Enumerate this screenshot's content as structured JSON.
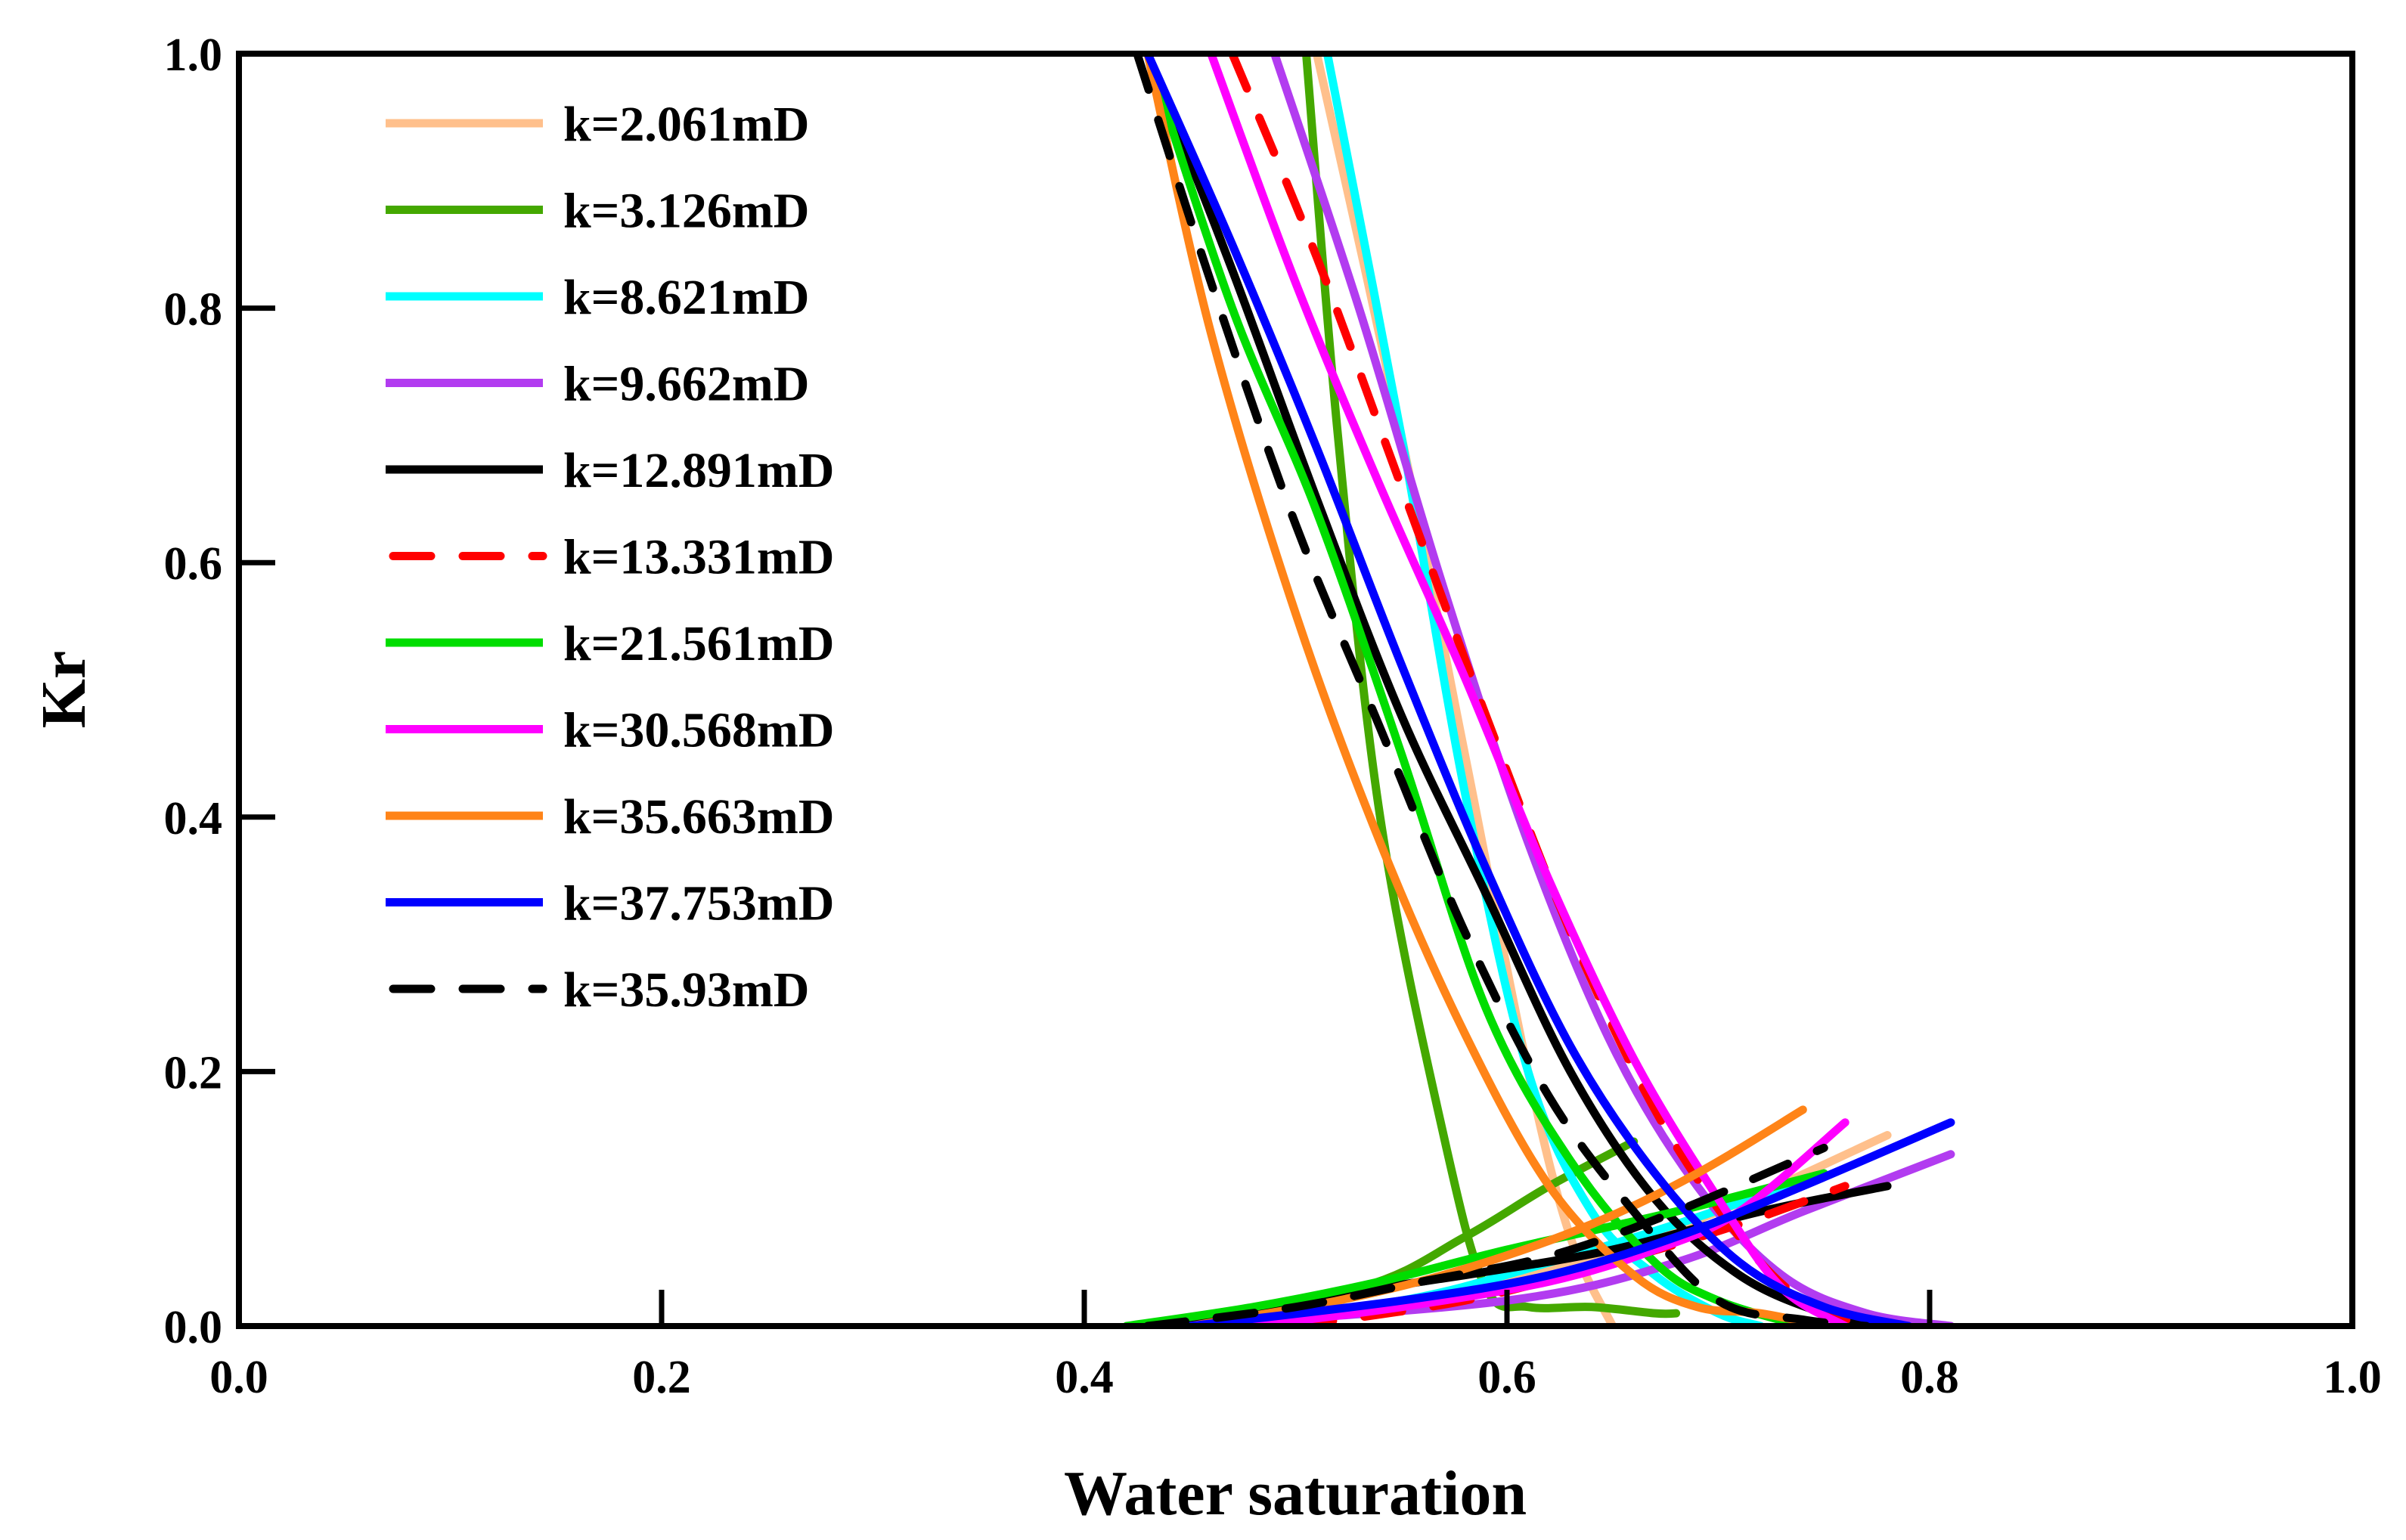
{
  "chart_data": {
    "type": "line",
    "title": "",
    "xlabel": "Water saturation",
    "ylabel": "Kr",
    "xlim": [
      0,
      1
    ],
    "ylim": [
      0,
      1
    ],
    "xticks": [
      "0.0",
      "0.2",
      "0.4",
      "0.6",
      "0.8",
      "1.0"
    ],
    "yticks": [
      "0.0",
      "0.2",
      "0.4",
      "0.6",
      "0.8",
      "1.0"
    ],
    "grid": false,
    "legend_position": "top-left",
    "series": [
      {
        "name": "k=2.061mD",
        "color": "#FFC08C",
        "dashed": false,
        "kro": [
          [
            0.51,
            1.0
          ],
          [
            0.55,
            0.7
          ],
          [
            0.58,
            0.45
          ],
          [
            0.61,
            0.2
          ],
          [
            0.63,
            0.07
          ],
          [
            0.65,
            0.0
          ]
        ],
        "krw": [
          [
            0.45,
            0.0
          ],
          [
            0.55,
            0.02
          ],
          [
            0.63,
            0.05
          ],
          [
            0.7,
            0.09
          ],
          [
            0.78,
            0.15
          ]
        ]
      },
      {
        "name": "k=3.126mD",
        "color": "#44A800",
        "dashed": false,
        "kro": [
          [
            0.505,
            1.0
          ],
          [
            0.52,
            0.7
          ],
          [
            0.54,
            0.4
          ],
          [
            0.57,
            0.15
          ],
          [
            0.59,
            0.03
          ],
          [
            0.61,
            0.015
          ],
          [
            0.64,
            0.015
          ],
          [
            0.67,
            0.01
          ],
          [
            0.68,
            0.01
          ]
        ],
        "krw": [
          [
            0.43,
            0.0
          ],
          [
            0.53,
            0.03
          ],
          [
            0.58,
            0.07
          ],
          [
            0.62,
            0.11
          ],
          [
            0.66,
            0.145
          ]
        ]
      },
      {
        "name": "k=8.621mD",
        "color": "#00FFFF",
        "dashed": false,
        "kro": [
          [
            0.515,
            1.0
          ],
          [
            0.55,
            0.7
          ],
          [
            0.58,
            0.42
          ],
          [
            0.61,
            0.2
          ],
          [
            0.64,
            0.09
          ],
          [
            0.67,
            0.04
          ],
          [
            0.7,
            0.01
          ],
          [
            0.72,
            0.0
          ]
        ],
        "krw": [
          [
            0.45,
            0.0
          ],
          [
            0.55,
            0.02
          ],
          [
            0.62,
            0.05
          ],
          [
            0.68,
            0.08
          ],
          [
            0.75,
            0.12
          ]
        ]
      },
      {
        "name": "k=9.662mD",
        "color": "#B23CF0",
        "dashed": false,
        "kro": [
          [
            0.49,
            1.0
          ],
          [
            0.53,
            0.8
          ],
          [
            0.57,
            0.58
          ],
          [
            0.61,
            0.38
          ],
          [
            0.65,
            0.22
          ],
          [
            0.69,
            0.11
          ],
          [
            0.73,
            0.04
          ],
          [
            0.77,
            0.01
          ],
          [
            0.81,
            0.0
          ]
        ],
        "krw": [
          [
            0.45,
            0.0
          ],
          [
            0.6,
            0.02
          ],
          [
            0.68,
            0.05
          ],
          [
            0.74,
            0.09
          ],
          [
            0.81,
            0.135
          ]
        ]
      },
      {
        "name": "k=12.891mD",
        "color": "#000000",
        "dashed": false,
        "kro": [
          [
            0.43,
            1.0
          ],
          [
            0.47,
            0.83
          ],
          [
            0.51,
            0.65
          ],
          [
            0.55,
            0.48
          ],
          [
            0.59,
            0.34
          ],
          [
            0.63,
            0.2
          ],
          [
            0.67,
            0.1
          ],
          [
            0.71,
            0.04
          ],
          [
            0.75,
            0.01
          ],
          [
            0.78,
            0.0
          ]
        ],
        "krw": [
          [
            0.43,
            0.0
          ],
          [
            0.5,
            0.02
          ],
          [
            0.58,
            0.04
          ],
          [
            0.65,
            0.06
          ],
          [
            0.72,
            0.09
          ],
          [
            0.78,
            0.11
          ]
        ]
      },
      {
        "name": "k=13.331mD",
        "color": "#FF0000",
        "dashed": true,
        "kro": [
          [
            0.47,
            1.0
          ],
          [
            0.51,
            0.84
          ],
          [
            0.55,
            0.66
          ],
          [
            0.59,
            0.48
          ],
          [
            0.63,
            0.31
          ],
          [
            0.67,
            0.17
          ],
          [
            0.71,
            0.07
          ],
          [
            0.74,
            0.02
          ],
          [
            0.77,
            0.0
          ]
        ],
        "krw": [
          [
            0.5,
            0.0
          ],
          [
            0.58,
            0.02
          ],
          [
            0.65,
            0.05
          ],
          [
            0.71,
            0.08
          ],
          [
            0.76,
            0.11
          ]
        ]
      },
      {
        "name": "k=21.561mD",
        "color": "#00DD00",
        "dashed": false,
        "kro": [
          [
            0.43,
            1.0
          ],
          [
            0.47,
            0.8
          ],
          [
            0.51,
            0.64
          ],
          [
            0.55,
            0.45
          ],
          [
            0.59,
            0.25
          ],
          [
            0.63,
            0.13
          ],
          [
            0.67,
            0.05
          ],
          [
            0.7,
            0.02
          ],
          [
            0.74,
            0.0
          ]
        ],
        "krw": [
          [
            0.42,
            0.0
          ],
          [
            0.48,
            0.015
          ],
          [
            0.54,
            0.035
          ],
          [
            0.6,
            0.06
          ],
          [
            0.68,
            0.09
          ],
          [
            0.75,
            0.12
          ]
        ]
      },
      {
        "name": "k=30.568mD",
        "color": "#FF00FF",
        "dashed": false,
        "kro": [
          [
            0.46,
            1.0
          ],
          [
            0.5,
            0.82
          ],
          [
            0.54,
            0.66
          ],
          [
            0.58,
            0.51
          ],
          [
            0.62,
            0.35
          ],
          [
            0.66,
            0.21
          ],
          [
            0.7,
            0.1
          ],
          [
            0.73,
            0.03
          ],
          [
            0.76,
            0.0
          ]
        ],
        "krw": [
          [
            0.48,
            0.0
          ],
          [
            0.55,
            0.015
          ],
          [
            0.62,
            0.035
          ],
          [
            0.67,
            0.06
          ],
          [
            0.71,
            0.09
          ],
          [
            0.76,
            0.16
          ]
        ]
      },
      {
        "name": "k=35.663mD",
        "color": "#FF8418",
        "dashed": false,
        "kro": [
          [
            0.43,
            1.0
          ],
          [
            0.46,
            0.78
          ],
          [
            0.5,
            0.56
          ],
          [
            0.54,
            0.38
          ],
          [
            0.58,
            0.23
          ],
          [
            0.62,
            0.11
          ],
          [
            0.66,
            0.04
          ],
          [
            0.69,
            0.015
          ],
          [
            0.72,
            0.01
          ],
          [
            0.75,
            0.0
          ]
        ],
        "krw": [
          [
            0.45,
            0.0
          ],
          [
            0.52,
            0.02
          ],
          [
            0.58,
            0.045
          ],
          [
            0.64,
            0.08
          ],
          [
            0.69,
            0.12
          ],
          [
            0.74,
            0.17
          ]
        ]
      },
      {
        "name": "k=37.753mD",
        "color": "#0000FF",
        "dashed": false,
        "kro": [
          [
            0.43,
            1.0
          ],
          [
            0.47,
            0.85
          ],
          [
            0.51,
            0.69
          ],
          [
            0.55,
            0.52
          ],
          [
            0.59,
            0.36
          ],
          [
            0.63,
            0.22
          ],
          [
            0.67,
            0.12
          ],
          [
            0.71,
            0.05
          ],
          [
            0.75,
            0.015
          ],
          [
            0.79,
            0.0
          ]
        ],
        "krw": [
          [
            0.45,
            0.0
          ],
          [
            0.55,
            0.02
          ],
          [
            0.62,
            0.04
          ],
          [
            0.68,
            0.07
          ],
          [
            0.74,
            0.11
          ],
          [
            0.81,
            0.16
          ]
        ]
      },
      {
        "name": "k=35.93mD",
        "color": "#000000",
        "dashed": true,
        "kro": [
          [
            0.425,
            1.0
          ],
          [
            0.46,
            0.82
          ],
          [
            0.5,
            0.63
          ],
          [
            0.54,
            0.47
          ],
          [
            0.58,
            0.31
          ],
          [
            0.62,
            0.18
          ],
          [
            0.66,
            0.09
          ],
          [
            0.7,
            0.02
          ],
          [
            0.74,
            0.005
          ],
          [
            0.77,
            0.0
          ]
        ],
        "krw": [
          [
            0.43,
            0.0
          ],
          [
            0.5,
            0.015
          ],
          [
            0.56,
            0.035
          ],
          [
            0.62,
            0.055
          ],
          [
            0.68,
            0.09
          ],
          [
            0.75,
            0.14
          ]
        ]
      }
    ]
  }
}
